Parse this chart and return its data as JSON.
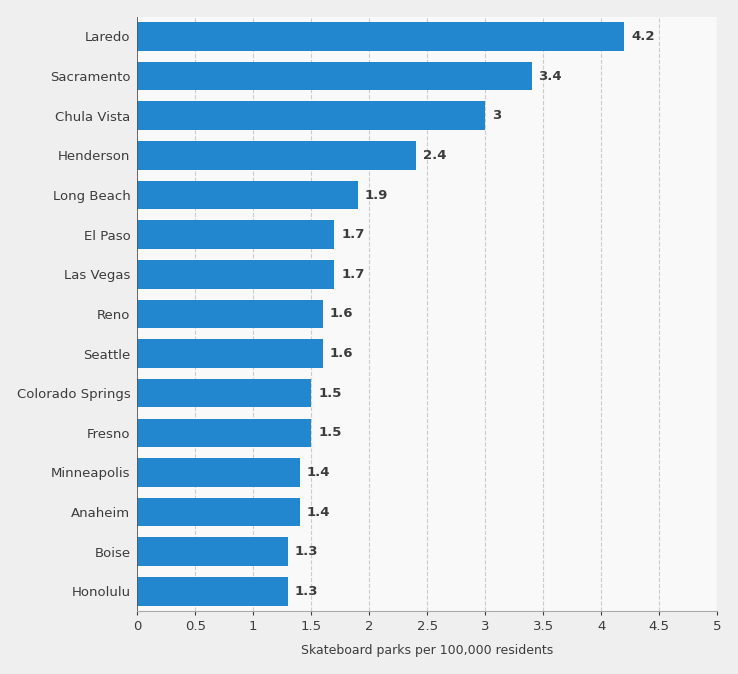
{
  "categories": [
    "Honolulu",
    "Boise",
    "Anaheim",
    "Minneapolis",
    "Fresno",
    "Colorado Springs",
    "Seattle",
    "Reno",
    "Las Vegas",
    "El Paso",
    "Long Beach",
    "Henderson",
    "Chula Vista",
    "Sacramento",
    "Laredo"
  ],
  "values": [
    1.3,
    1.3,
    1.4,
    1.4,
    1.5,
    1.5,
    1.6,
    1.6,
    1.7,
    1.7,
    1.9,
    2.4,
    3.0,
    3.4,
    4.2
  ],
  "bar_color": "#2387d0",
  "xlabel": "Skateboard parks per 100,000 residents",
  "xlim": [
    0,
    5
  ],
  "xticks": [
    0,
    0.5,
    1,
    1.5,
    2,
    2.5,
    3,
    3.5,
    4,
    4.5,
    5
  ],
  "background_color": "#efefef",
  "plot_background_color": "#f9f9f9",
  "bar_height": 0.72,
  "label_fontsize": 9.5,
  "xlabel_fontsize": 9,
  "value_label_fontsize": 9.5,
  "grid_color": "#cccccc",
  "text_color": "#3c3c3c"
}
